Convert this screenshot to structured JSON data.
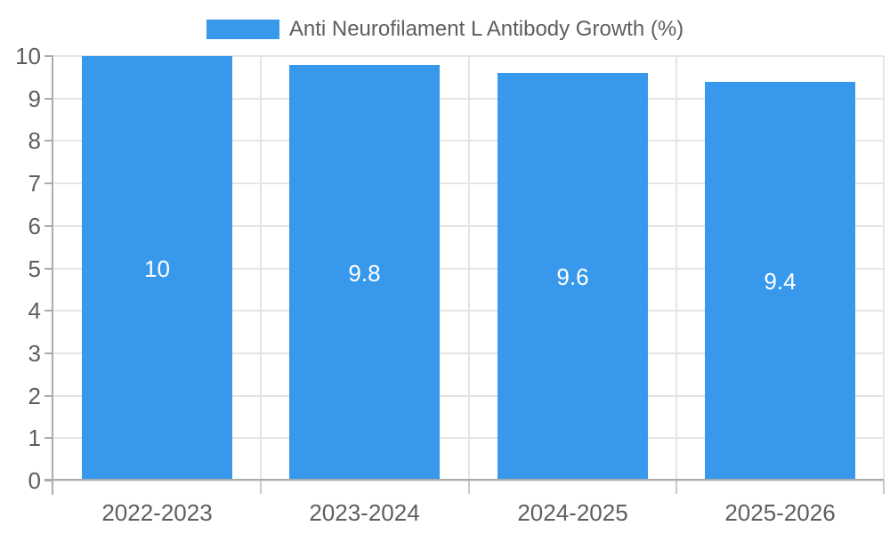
{
  "colors": {
    "bar": "#3899EC",
    "grid": "#E5E5E5",
    "axis": "#ACACAC",
    "x_tick": "#C9C9C9",
    "text": "#5E5E5E",
    "bar_label": "#FFFFFF",
    "background": "#FFFFFF"
  },
  "chart_data": {
    "type": "bar",
    "title": "",
    "legend": {
      "position": "top",
      "label": "Anti Neurofilament L Antibody Growth (%)"
    },
    "categories": [
      "2022-2023",
      "2023-2024",
      "2024-2025",
      "2025-2026"
    ],
    "series": [
      {
        "name": "Anti Neurofilament L Antibody Growth (%)",
        "values": [
          10,
          9.8,
          9.6,
          9.4
        ],
        "labels": [
          "10",
          "9.8",
          "9.6",
          "9.4"
        ]
      }
    ],
    "ylim": [
      0,
      10
    ],
    "y_ticks": [
      0,
      1,
      2,
      3,
      4,
      5,
      6,
      7,
      8,
      9,
      10
    ],
    "grid": true,
    "xlabel": "",
    "ylabel": ""
  }
}
